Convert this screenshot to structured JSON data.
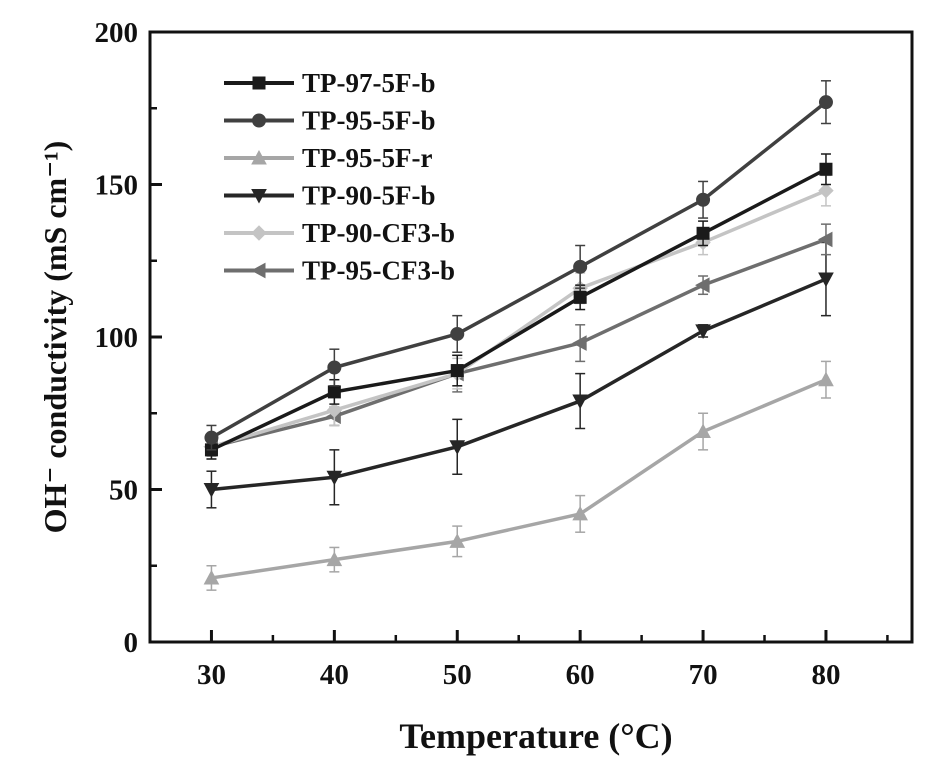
{
  "chart_data": {
    "type": "line",
    "xlabel": "Temperature (°C)",
    "ylabel": "OH⁻ conductivity (mS cm⁻¹)",
    "xlim": [
      25,
      87
    ],
    "ylim": [
      0,
      200
    ],
    "x_ticks": [
      30,
      40,
      50,
      60,
      70,
      80
    ],
    "y_ticks": [
      0,
      50,
      100,
      150,
      200
    ],
    "legend_position": "top-left",
    "grid": false,
    "series": [
      {
        "name": "TP-97-5F-b",
        "color": "#1a1a1a",
        "marker": "square",
        "x": [
          30,
          40,
          50,
          60,
          70,
          80
        ],
        "y": [
          63,
          82,
          89,
          113,
          134,
          155
        ],
        "err": [
          3,
          4,
          5,
          4,
          4,
          5
        ]
      },
      {
        "name": "TP-95-5F-b",
        "color": "#404040",
        "marker": "circle",
        "x": [
          30,
          40,
          50,
          60,
          70,
          80
        ],
        "y": [
          67,
          90,
          101,
          123,
          145,
          177
        ],
        "err": [
          4,
          6,
          6,
          7,
          6,
          7
        ]
      },
      {
        "name": "TP-95-5F-r",
        "color": "#a6a6a6",
        "marker": "triangle-up",
        "x": [
          30,
          40,
          50,
          60,
          70,
          80
        ],
        "y": [
          21,
          27,
          33,
          42,
          69,
          86
        ],
        "err": [
          4,
          4,
          5,
          6,
          6,
          6
        ]
      },
      {
        "name": "TP-90-5F-b",
        "color": "#262626",
        "marker": "triangle-down",
        "x": [
          30,
          40,
          50,
          60,
          70,
          80
        ],
        "y": [
          50,
          54,
          64,
          79,
          102,
          119
        ],
        "err": [
          6,
          9,
          9,
          9,
          2,
          12
        ]
      },
      {
        "name": "TP-90-CF3-b",
        "color": "#c4c4c4",
        "marker": "diamond",
        "x": [
          30,
          40,
          50,
          60,
          70,
          80
        ],
        "y": [
          64,
          76,
          88,
          116,
          131,
          148
        ],
        "err": [
          4,
          5,
          5,
          5,
          4,
          5
        ]
      },
      {
        "name": "TP-95-CF3-b",
        "color": "#6e6e6e",
        "marker": "triangle-left",
        "x": [
          30,
          40,
          50,
          60,
          70,
          80
        ],
        "y": [
          64,
          74,
          88,
          98,
          117,
          132
        ],
        "err": [
          3,
          3,
          6,
          6,
          3,
          5
        ]
      }
    ]
  }
}
